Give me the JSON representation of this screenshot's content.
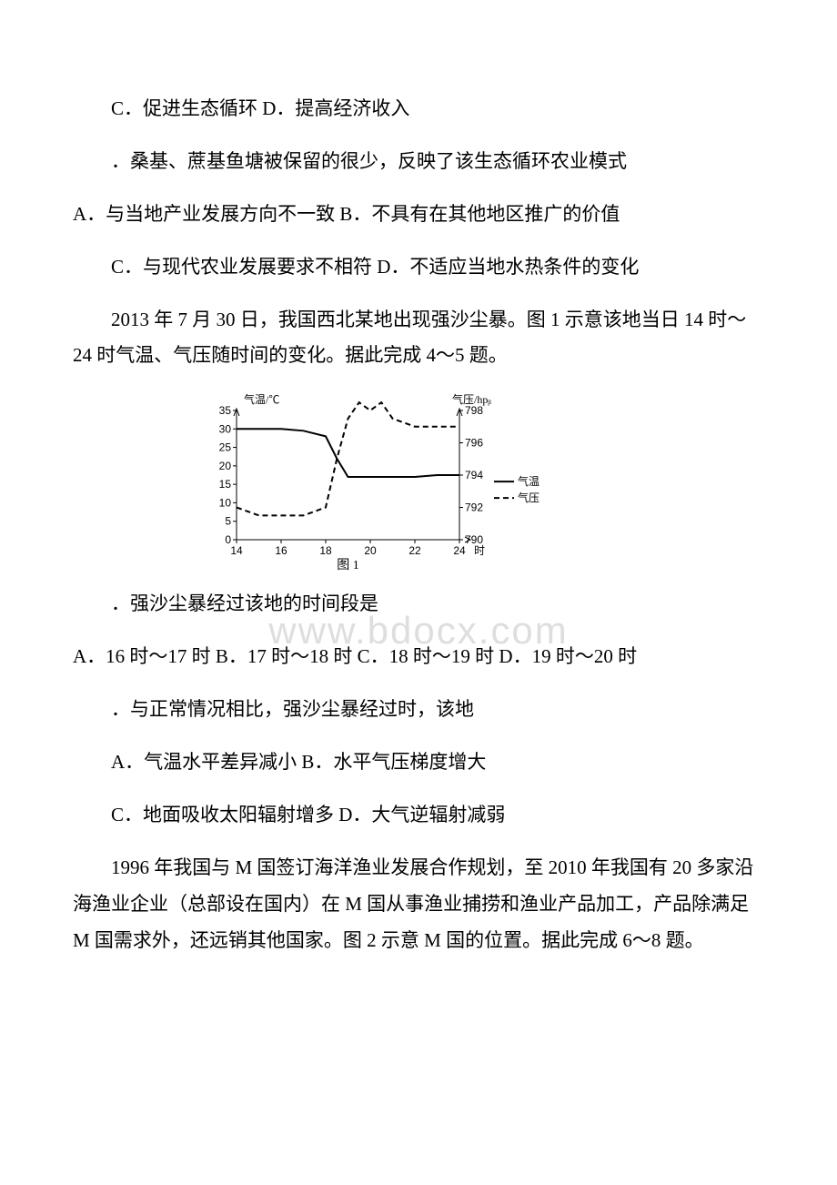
{
  "line1": "C．促进生态循环 D．提高经济收入",
  "line2": "．桑基、蔗基鱼塘被保留的很少，反映了该生态循环农业模式",
  "line3": "A．与当地产业发展方向不一致 B．不具有在其他地区推广的价值",
  "line4": "C．与现代农业发展要求不相符 D．不适应当地水热条件的变化",
  "intro2": "2013 年 7 月 30 日，我国西北某地出现强沙尘暴。图 1 示意该地当日 14 时～24 时气温、气压随时间的变化。据此完成 4～5 题。",
  "q4_stem": "．强沙尘暴经过该地的时间段是",
  "q4_opts": "A．16 时～17 时 B．17 时～18 时 C．18 时～19 时 D．19 时～20 时",
  "q5_stem": "．与正常情况相比，强沙尘暴经过时，该地",
  "q5_opt1": "A．气温水平差异减小 B．水平气压梯度增大",
  "q5_opt2": "C．地面吸收太阳辐射增多 D．大气逆辐射减弱",
  "intro3": "1996 年我国与 M 国签订海洋渔业发展合作规划，至 2010 年我国有 20 多家沿海渔业企业（总部设在国内）在 M 国从事渔业捕捞和渔业产品加工，产品除满足 M 国需求外，还远销其他国家。图 2 示意 M 国的位置。据此完成 6～8 题。",
  "watermark": "www.bdocx.com",
  "chart": {
    "type": "line",
    "x_label": "时",
    "x_ticks": [
      14,
      16,
      18,
      20,
      22,
      24
    ],
    "y_left_label": "气温/℃",
    "y_left_ticks": [
      0,
      5,
      10,
      15,
      20,
      25,
      30,
      35
    ],
    "y_right_label": "气压/hpᵦ",
    "y_right_ticks": [
      790,
      792,
      794,
      796,
      798
    ],
    "caption": "图 1",
    "legend": [
      {
        "label": "气温",
        "dash": "0",
        "side": "left"
      },
      {
        "label": "气压",
        "dash": "6,4",
        "side": "right"
      }
    ],
    "temp_series": [
      {
        "t": 14,
        "v": 30
      },
      {
        "t": 15,
        "v": 30
      },
      {
        "t": 16,
        "v": 30
      },
      {
        "t": 17,
        "v": 29.5
      },
      {
        "t": 18,
        "v": 28
      },
      {
        "t": 18.5,
        "v": 22
      },
      {
        "t": 19,
        "v": 17
      },
      {
        "t": 20,
        "v": 17
      },
      {
        "t": 21,
        "v": 17
      },
      {
        "t": 22,
        "v": 17
      },
      {
        "t": 23,
        "v": 17.5
      },
      {
        "t": 24,
        "v": 17.5
      }
    ],
    "press_series": [
      {
        "t": 14,
        "v": 792
      },
      {
        "t": 15,
        "v": 791.5
      },
      {
        "t": 16,
        "v": 791.5
      },
      {
        "t": 17,
        "v": 791.5
      },
      {
        "t": 18,
        "v": 792
      },
      {
        "t": 18.5,
        "v": 795
      },
      {
        "t": 19,
        "v": 797.5
      },
      {
        "t": 19.5,
        "v": 798.5
      },
      {
        "t": 20,
        "v": 798
      },
      {
        "t": 20.5,
        "v": 798.5
      },
      {
        "t": 21,
        "v": 797.5
      },
      {
        "t": 22,
        "v": 797
      },
      {
        "t": 23,
        "v": 797
      },
      {
        "t": 24,
        "v": 797
      }
    ],
    "axis_color": "#000000",
    "line_color": "#000000",
    "line_width": 2,
    "font_size_axis": 12,
    "font_size_caption": 14,
    "background_color": "#ffffff"
  }
}
